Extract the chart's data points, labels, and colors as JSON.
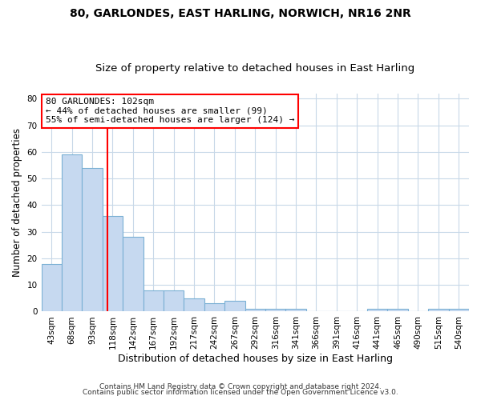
{
  "title1": "80, GARLONDES, EAST HARLING, NORWICH, NR16 2NR",
  "title2": "Size of property relative to detached houses in East Harling",
  "xlabel": "Distribution of detached houses by size in East Harling",
  "ylabel": "Number of detached properties",
  "footer1": "Contains HM Land Registry data © Crown copyright and database right 2024.",
  "footer2": "Contains public sector information licensed under the Open Government Licence v3.0.",
  "bin_labels": [
    "43sqm",
    "68sqm",
    "93sqm",
    "118sqm",
    "142sqm",
    "167sqm",
    "192sqm",
    "217sqm",
    "242sqm",
    "267sqm",
    "292sqm",
    "316sqm",
    "341sqm",
    "366sqm",
    "391sqm",
    "416sqm",
    "441sqm",
    "465sqm",
    "490sqm",
    "515sqm",
    "540sqm"
  ],
  "bar_heights": [
    18,
    59,
    54,
    36,
    28,
    8,
    8,
    5,
    3,
    4,
    1,
    1,
    1,
    0,
    0,
    0,
    1,
    1,
    0,
    1,
    1
  ],
  "bar_color": "#c6d9f0",
  "bar_edge_color": "#7ab0d4",
  "red_line_x": 2.75,
  "annotation_line1": "80 GARLONDES: 102sqm",
  "annotation_line2": "← 44% of detached houses are smaller (99)",
  "annotation_line3": "55% of semi-detached houses are larger (124) →",
  "ylim": [
    0,
    82
  ],
  "yticks": [
    0,
    10,
    20,
    30,
    40,
    50,
    60,
    70,
    80
  ],
  "background_color": "#ffffff",
  "grid_color": "#c8d8e8",
  "title1_fontsize": 10,
  "title2_fontsize": 9.5,
  "xlabel_fontsize": 9,
  "ylabel_fontsize": 8.5,
  "tick_fontsize": 7.5,
  "annot_fontsize": 8,
  "footer_fontsize": 6.5
}
